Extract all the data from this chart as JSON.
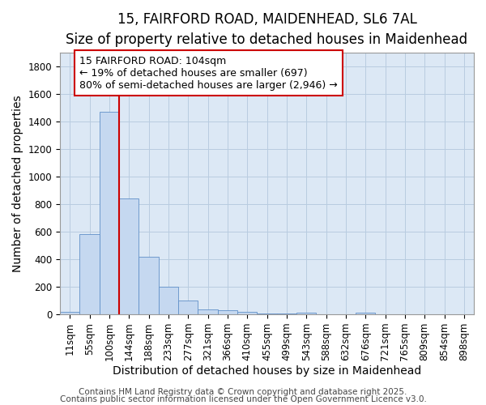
{
  "title_line1": "15, FAIRFORD ROAD, MAIDENHEAD, SL6 7AL",
  "title_line2": "Size of property relative to detached houses in Maidenhead",
  "xlabel": "Distribution of detached houses by size in Maidenhead",
  "ylabel": "Number of detached properties",
  "bar_color": "#c5d8f0",
  "bar_edge_color": "#6090c8",
  "bg_color": "#dce8f5",
  "fig_color": "#ffffff",
  "grid_color": "#b8cce0",
  "categories": [
    "11sqm",
    "55sqm",
    "100sqm",
    "144sqm",
    "188sqm",
    "233sqm",
    "277sqm",
    "321sqm",
    "366sqm",
    "410sqm",
    "455sqm",
    "499sqm",
    "543sqm",
    "588sqm",
    "632sqm",
    "676sqm",
    "721sqm",
    "765sqm",
    "809sqm",
    "854sqm",
    "898sqm"
  ],
  "values": [
    20,
    585,
    1470,
    840,
    420,
    200,
    100,
    38,
    30,
    18,
    5,
    5,
    14,
    2,
    2,
    14,
    2,
    2,
    2,
    2,
    2
  ],
  "ylim": [
    0,
    1900
  ],
  "yticks": [
    0,
    200,
    400,
    600,
    800,
    1000,
    1200,
    1400,
    1600,
    1800
  ],
  "red_line_x": 2.5,
  "annotation_line1": "15 FAIRFORD ROAD: 104sqm",
  "annotation_line2": "← 19% of detached houses are smaller (697)",
  "annotation_line3": "80% of semi-detached houses are larger (2,946) →",
  "annotation_box_color": "#ffffff",
  "annotation_border_color": "#cc0000",
  "footer_line1": "Contains HM Land Registry data © Crown copyright and database right 2025.",
  "footer_line2": "Contains public sector information licensed under the Open Government Licence v3.0.",
  "title_fontsize": 12,
  "subtitle_fontsize": 10.5,
  "axis_label_fontsize": 10,
  "tick_fontsize": 8.5,
  "annotation_fontsize": 9,
  "footer_fontsize": 7.5
}
